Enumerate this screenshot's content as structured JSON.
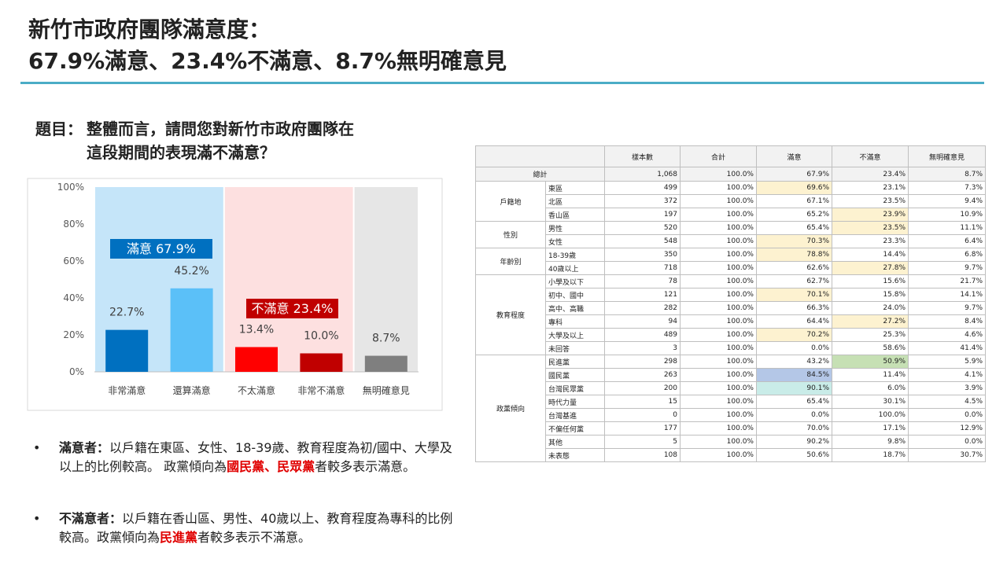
{
  "header": {
    "title": [
      "新竹市政府團隊滿意度：",
      "67.9%滿意、23.4%不滿意、8.7%無明確意見"
    ]
  },
  "question": {
    "label": "題目：",
    "lines": [
      "整體而言，請問您對新竹市政府團隊在",
      "這段期間的表現滿不滿意？"
    ]
  },
  "chart_data": {
    "type": "bar",
    "categories": [
      "非常滿意",
      "還算滿意",
      "不太滿意",
      "非常不滿意",
      "無明確意見"
    ],
    "values": [
      22.7,
      45.2,
      13.4,
      10.0,
      8.7
    ],
    "value_labels": [
      "22.7%",
      "45.2%",
      "13.4%",
      "10.0%",
      "8.7%"
    ],
    "colors": [
      "#0070c0",
      "#5bc0f8",
      "#ff0000",
      "#c00000",
      "#7f7f7f"
    ],
    "ylim": [
      0,
      100
    ],
    "yticks": [
      {
        "value": 0,
        "label": "0%"
      },
      {
        "value": 20,
        "label": "20%"
      },
      {
        "value": 40,
        "label": "40%"
      },
      {
        "value": 60,
        "label": "60%"
      },
      {
        "value": 80,
        "label": "80%"
      },
      {
        "value": 100,
        "label": "100%"
      }
    ],
    "grid": false,
    "annotations": [
      {
        "text": "滿意 67.9%",
        "color": "#0070c0"
      },
      {
        "text": "不滿意 23.4%",
        "color": "#c00000"
      }
    ]
  },
  "table": {
    "columns": [
      "樣本數",
      "合計",
      "滿意",
      "不滿意",
      "無明確意見"
    ],
    "total": [
      "總計",
      "1,068",
      "100.0%",
      "67.9%",
      "23.4%",
      "8.7%"
    ],
    "groups": [
      {
        "name": "戶籍地",
        "rows": [
          [
            "東區",
            "499",
            "100.0%",
            "69.6%",
            "23.1%",
            "7.3%"
          ],
          [
            "北區",
            "372",
            "100.0%",
            "67.1%",
            "23.5%",
            "9.4%"
          ],
          [
            "香山區",
            "197",
            "100.0%",
            "65.2%",
            "23.9%",
            "10.9%"
          ]
        ]
      },
      {
        "name": "性別",
        "rows": [
          [
            "男性",
            "520",
            "100.0%",
            "65.4%",
            "23.5%",
            "11.1%"
          ],
          [
            "女性",
            "548",
            "100.0%",
            "70.3%",
            "23.3%",
            "6.4%"
          ]
        ]
      },
      {
        "name": "年齡別",
        "rows": [
          [
            "18-39歲",
            "350",
            "100.0%",
            "78.8%",
            "14.4%",
            "6.8%"
          ],
          [
            "40歲以上",
            "718",
            "100.0%",
            "62.6%",
            "27.8%",
            "9.7%"
          ]
        ]
      },
      {
        "name": "教育程度",
        "rows": [
          [
            "小學及以下",
            "78",
            "100.0%",
            "62.7%",
            "15.6%",
            "21.7%"
          ],
          [
            "初中、國中",
            "121",
            "100.0%",
            "70.1%",
            "15.8%",
            "14.1%"
          ],
          [
            "高中、高職",
            "282",
            "100.0%",
            "66.3%",
            "24.0%",
            "9.7%"
          ],
          [
            "專科",
            "94",
            "100.0%",
            "64.4%",
            "27.2%",
            "8.4%"
          ],
          [
            "大學及以上",
            "489",
            "100.0%",
            "70.2%",
            "25.3%",
            "4.6%"
          ],
          [
            "未回答",
            "3",
            "100.0%",
            "0.0%",
            "58.6%",
            "41.4%"
          ]
        ]
      },
      {
        "name": "政黨傾向",
        "rows": [
          [
            "民進黨",
            "298",
            "100.0%",
            "43.2%",
            "50.9%",
            "5.9%"
          ],
          [
            "國民黨",
            "263",
            "100.0%",
            "84.5%",
            "11.4%",
            "4.1%"
          ],
          [
            "台灣民眾黨",
            "200",
            "100.0%",
            "90.1%",
            "6.0%",
            "3.9%"
          ],
          [
            "時代力量",
            "15",
            "100.0%",
            "65.4%",
            "30.1%",
            "4.5%"
          ],
          [
            "台灣基進",
            "0",
            "100.0%",
            "0.0%",
            "100.0%",
            "0.0%"
          ],
          [
            "不偏任何黨",
            "177",
            "100.0%",
            "70.0%",
            "17.1%",
            "12.9%"
          ],
          [
            "其他",
            "5",
            "100.0%",
            "90.2%",
            "9.8%",
            "0.0%"
          ],
          [
            "未表態",
            "108",
            "100.0%",
            "50.6%",
            "18.7%",
            "30.7%"
          ]
        ]
      }
    ]
  },
  "bullets": [
    {
      "label": "滿意者：",
      "parts": [
        "以戶籍在東區、女性、18-39歲、教育程度為初/國中、大學及以上的比例較高。 政黨傾向為",
        "國民黨、民眾黨",
        "者較多表示滿意。"
      ]
    },
    {
      "label": "不滿意者：",
      "parts": [
        "以戶籍在香山區、男性、40歲以上、教育程度為專科的比例較高。政黨傾向為",
        "民進黨",
        "者較多表示不滿意。"
      ]
    }
  ]
}
